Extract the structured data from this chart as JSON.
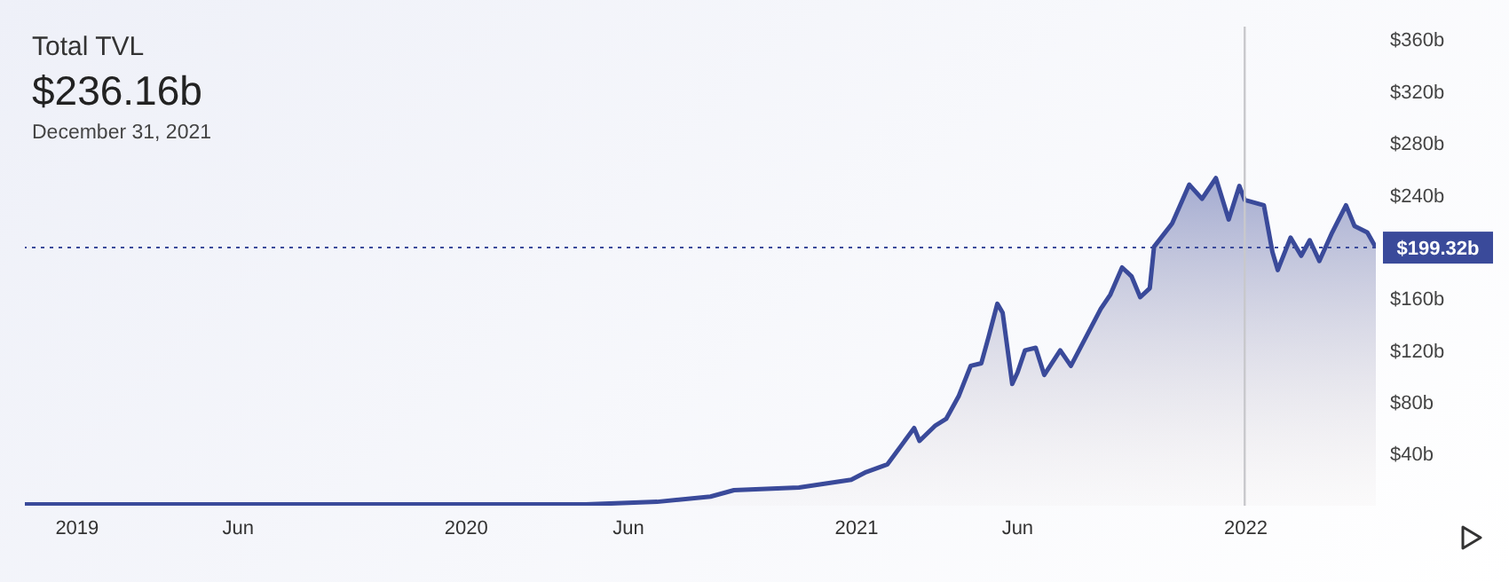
{
  "chart_data": {
    "type": "area",
    "title": "Total TVL",
    "subtitle": "$236.16b",
    "annotations": [
      "December 31, 2021"
    ],
    "x": [
      "2018-11-13",
      "2019-04-05",
      "2019-09-18",
      "2020-01-06",
      "2020-04-22",
      "2020-06-28",
      "2020-08-17",
      "2020-09-08",
      "2020-11-08",
      "2020-12-27",
      "2021-01-10",
      "2021-01-30",
      "2021-02-16",
      "2021-02-24",
      "2021-03-01",
      "2021-03-16",
      "2021-03-26",
      "2021-04-07",
      "2021-04-18",
      "2021-04-28",
      "2021-05-05",
      "2021-05-13",
      "2021-05-18",
      "2021-05-27",
      "2021-06-01",
      "2021-06-08",
      "2021-06-18",
      "2021-06-26",
      "2021-07-11",
      "2021-07-21",
      "2021-08-18",
      "2021-08-27",
      "2021-09-07",
      "2021-09-16",
      "2021-09-24",
      "2021-10-03",
      "2021-10-07",
      "2021-10-24",
      "2021-11-09",
      "2021-11-21",
      "2021-12-04",
      "2021-12-16",
      "2021-12-26",
      "2021-12-31",
      "2022-01-18",
      "2022-01-26",
      "2022-01-31",
      "2022-02-12",
      "2022-02-22",
      "2022-03-02",
      "2022-03-11",
      "2022-03-23",
      "2022-04-05",
      "2022-04-13",
      "2022-04-25",
      "2022-05-03"
    ],
    "series": [
      {
        "color": "#3a4a9a",
        "values": [
          1,
          1,
          1,
          1,
          1,
          3,
          7,
          12,
          14,
          20,
          26,
          32,
          51,
          60,
          50,
          62,
          67,
          85,
          108,
          110,
          131,
          156,
          149,
          94,
          103,
          120,
          122,
          101,
          120,
          108,
          152,
          163,
          184,
          177,
          161,
          168,
          200,
          218,
          248,
          237,
          253,
          221,
          247,
          236.16,
          232,
          196,
          182,
          207,
          193,
          205,
          189,
          211,
          232,
          216,
          211,
          199.32
        ]
      }
    ],
    "xlim": [
      "2018-11-13",
      "2022-05-03"
    ],
    "xticks": [
      {
        "value": "2019-01-01",
        "label": "2019"
      },
      {
        "value": "2019-06-01",
        "label": "Jun"
      },
      {
        "value": "2020-01-01",
        "label": "2020"
      },
      {
        "value": "2020-06-01",
        "label": "Jun"
      },
      {
        "value": "2021-01-01",
        "label": "2021"
      },
      {
        "value": "2021-06-01",
        "label": "Jun"
      },
      {
        "value": "2022-01-01",
        "label": "2022"
      }
    ],
    "ylim": [
      0,
      370
    ],
    "yticks": [
      {
        "value": 40,
        "label": "$40b"
      },
      {
        "value": 80,
        "label": "$80b"
      },
      {
        "value": 120,
        "label": "$120b"
      },
      {
        "value": 160,
        "label": "$160b"
      },
      {
        "value": 240,
        "label": "$240b"
      },
      {
        "value": 280,
        "label": "$280b"
      },
      {
        "value": 320,
        "label": "$320b"
      },
      {
        "value": 360,
        "label": "$360b"
      }
    ],
    "ref_lines": [
      {
        "axis": "y",
        "value": 199.32,
        "label": "$199.32b",
        "color": "#3a4a9a",
        "line_style": "dotted"
      },
      {
        "axis": "x",
        "value": "2021-12-31",
        "color": "#c8c8cc",
        "line_style": "solid"
      }
    ],
    "line_style": "solid"
  }
}
